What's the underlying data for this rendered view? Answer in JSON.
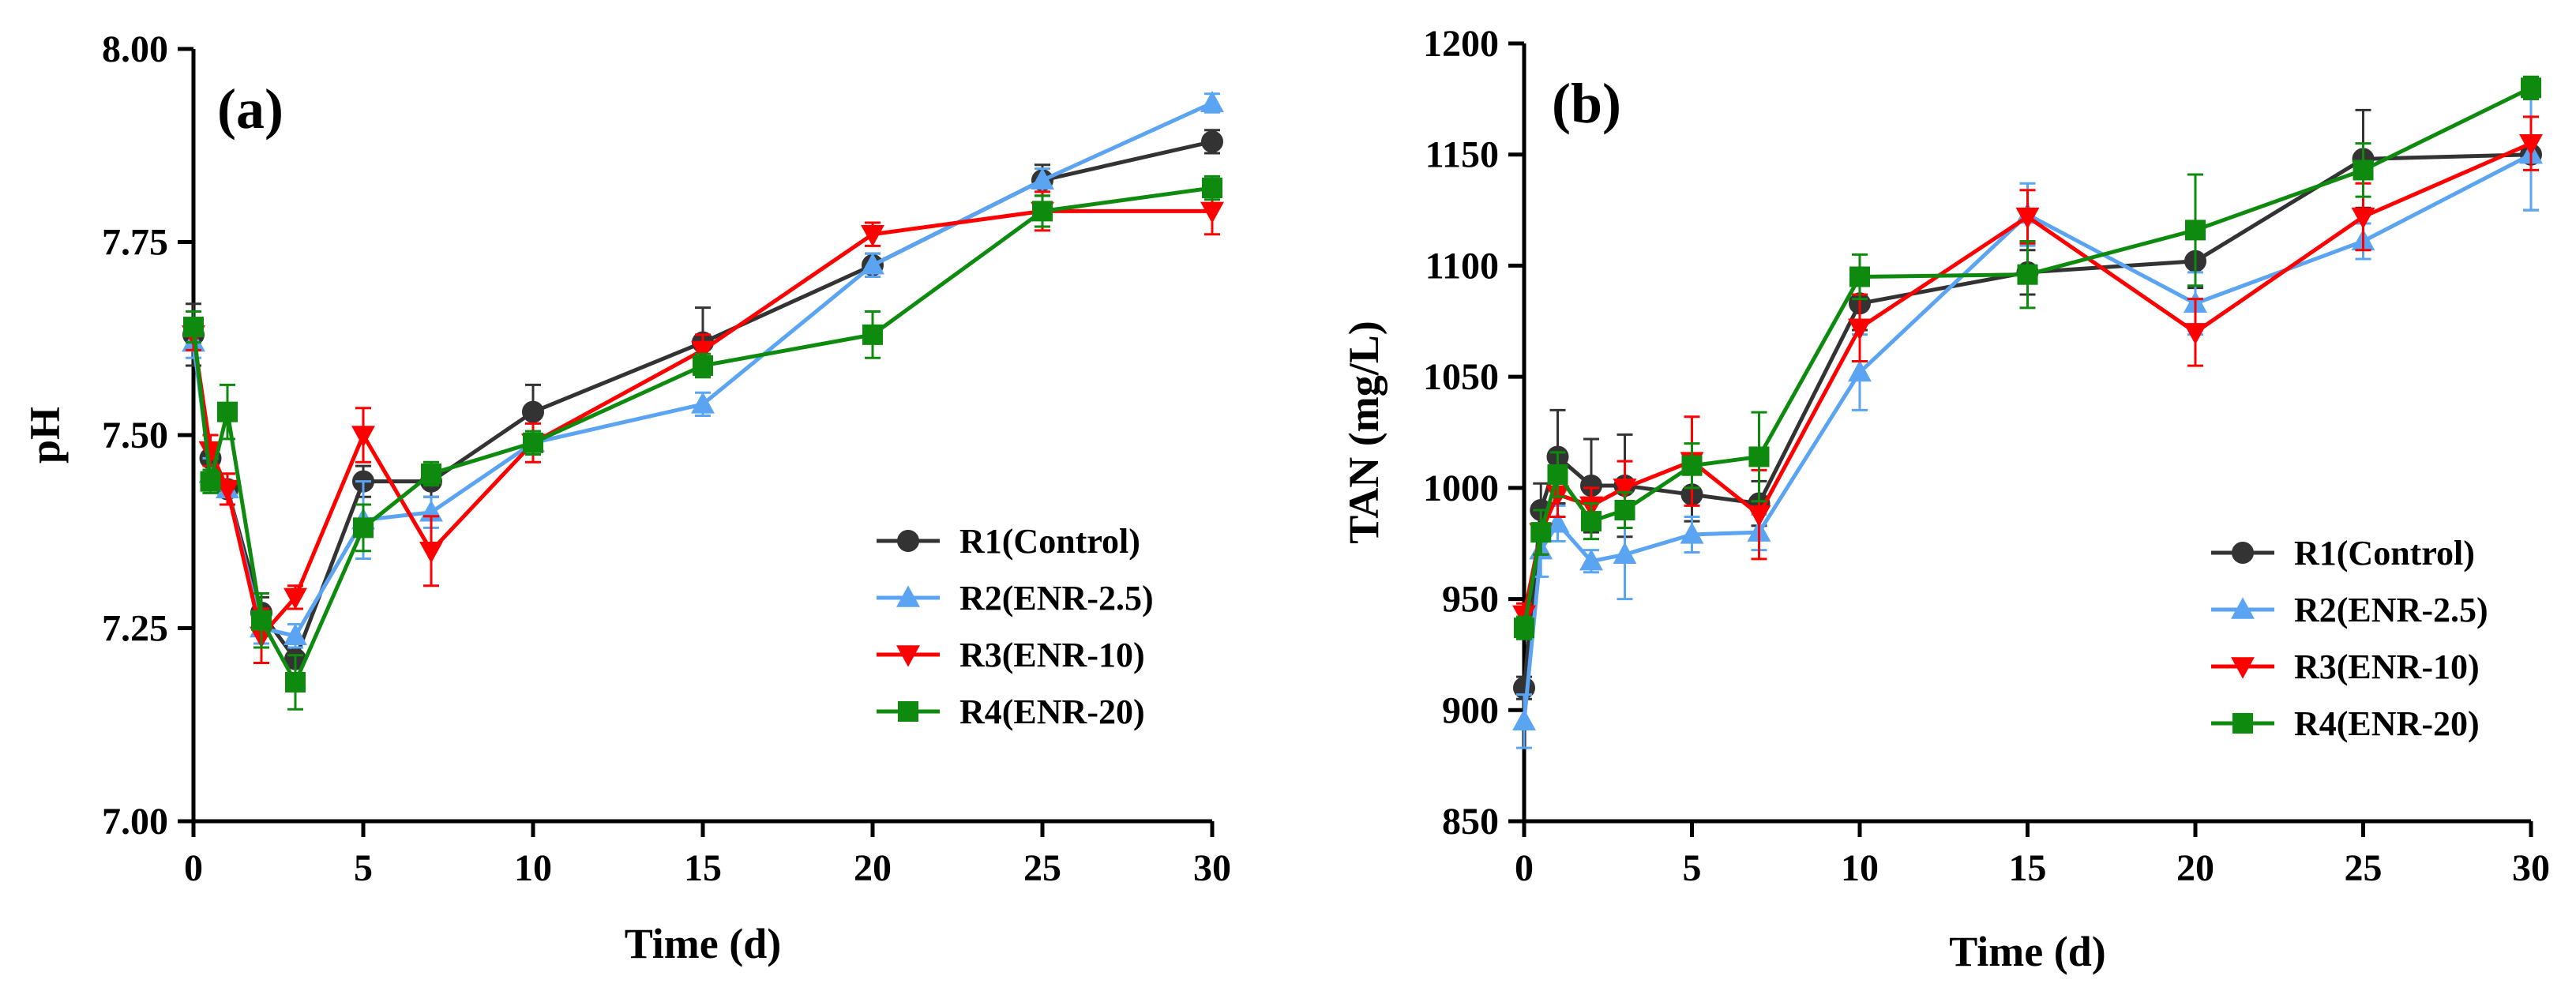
{
  "chart_data": [
    {
      "type": "line",
      "panel_label": "(a)",
      "xlabel": "Time (d)",
      "ylabel": "pH",
      "xlim": [
        0,
        30
      ],
      "ylim": [
        7.0,
        8.0
      ],
      "xticks": [
        0,
        5,
        10,
        15,
        20,
        25,
        30
      ],
      "yticks": [
        7.0,
        7.25,
        7.5,
        7.75,
        8.0
      ],
      "ytick_labels": [
        "7.00",
        "7.25",
        "7.50",
        "7.75",
        "8.00"
      ],
      "grid": false,
      "legend_position": "right-middle",
      "x": [
        0,
        0.5,
        1,
        2,
        3,
        5,
        7,
        10,
        15,
        20,
        25,
        30
      ],
      "series": [
        {
          "name": "R1(Control)",
          "color": "#333333",
          "marker": "circle",
          "values": [
            7.63,
            7.47,
            7.43,
            7.27,
            7.21,
            7.44,
            7.44,
            7.53,
            7.62,
            7.72,
            7.83,
            7.88
          ],
          "errors": [
            0.04,
            0.02,
            0.02,
            0.02,
            0.02,
            0.02,
            0.02,
            0.035,
            0.045,
            0.015,
            0.02,
            0.015
          ]
        },
        {
          "name": "R2(ENR-2.5)",
          "color": "#5ba4f2",
          "marker": "triangle-up",
          "values": [
            7.62,
            7.45,
            7.43,
            7.25,
            7.24,
            7.39,
            7.4,
            7.49,
            7.54,
            7.72,
            7.83,
            7.93
          ],
          "errors": [
            0.02,
            0.02,
            0.02,
            0.02,
            0.015,
            0.05,
            0.02,
            0.015,
            0.015,
            0.015,
            0.015,
            0.012
          ]
        },
        {
          "name": "R3(ENR-10)",
          "color": "#ff0000",
          "marker": "triangle-down",
          "values": [
            7.63,
            7.48,
            7.43,
            7.24,
            7.29,
            7.5,
            7.35,
            7.49,
            7.61,
            7.76,
            7.79,
            7.79
          ],
          "errors": [
            0.02,
            0.02,
            0.02,
            0.035,
            0.015,
            0.035,
            0.045,
            0.025,
            0.02,
            0.015,
            0.025,
            0.03
          ]
        },
        {
          "name": "R4(ENR-20)",
          "color": "#0e8a0e",
          "marker": "square",
          "values": [
            7.64,
            7.44,
            7.53,
            7.26,
            7.18,
            7.38,
            7.45,
            7.49,
            7.59,
            7.63,
            7.79,
            7.82
          ],
          "errors": [
            0.02,
            0.015,
            0.035,
            0.035,
            0.035,
            0.03,
            0.015,
            0.015,
            0.015,
            0.03,
            0.02,
            0.015
          ]
        }
      ]
    },
    {
      "type": "line",
      "panel_label": "(b)",
      "xlabel": "Time (d)",
      "ylabel": "TAN (mg/L)",
      "xlim": [
        0,
        30
      ],
      "ylim": [
        850,
        1200
      ],
      "xticks": [
        0,
        5,
        10,
        15,
        20,
        25,
        30
      ],
      "yticks": [
        850,
        900,
        950,
        1000,
        1050,
        1100,
        1150,
        1200
      ],
      "ytick_labels": [
        "850",
        "900",
        "950",
        "1000",
        "1050",
        "1100",
        "1150",
        "1200"
      ],
      "grid": false,
      "legend_position": "bottom-right",
      "x": [
        0,
        0.5,
        1,
        2,
        3,
        5,
        7,
        10,
        15,
        20,
        25,
        30
      ],
      "series": [
        {
          "name": "R1(Control)",
          "color": "#333333",
          "marker": "circle",
          "values": [
            910,
            990,
            1014,
            1001,
            1001,
            997,
            993,
            1083,
            1097,
            1102,
            1148,
            1150
          ],
          "errors": [
            5,
            12,
            21,
            21,
            23,
            12,
            10,
            12,
            10,
            12,
            22,
            25
          ]
        },
        {
          "name": "R2(ENR-2.5)",
          "color": "#5ba4f2",
          "marker": "triangle-up",
          "values": [
            895,
            972,
            984,
            967,
            970,
            979,
            980,
            1052,
            1123,
            1083,
            1111,
            1150
          ],
          "errors": [
            12,
            12,
            8,
            5,
            20,
            8,
            8,
            17,
            14,
            14,
            8,
            25
          ]
        },
        {
          "name": "R3(ENR-10)",
          "color": "#ff0000",
          "marker": "triangle-down",
          "values": [
            943,
            980,
            997,
            992,
            1000,
            1012,
            988,
            1072,
            1122,
            1070,
            1122,
            1155
          ],
          "errors": [
            5,
            10,
            10,
            8,
            12,
            20,
            20,
            15,
            12,
            15,
            15,
            12
          ]
        },
        {
          "name": "R4(ENR-20)",
          "color": "#0e8a0e",
          "marker": "square",
          "values": [
            937,
            980,
            1006,
            985,
            990,
            1010,
            1014,
            1095,
            1096,
            1116,
            1143,
            1180
          ],
          "errors": [
            5,
            10,
            10,
            8,
            8,
            10,
            20,
            10,
            15,
            25,
            12,
            5
          ]
        }
      ]
    }
  ]
}
